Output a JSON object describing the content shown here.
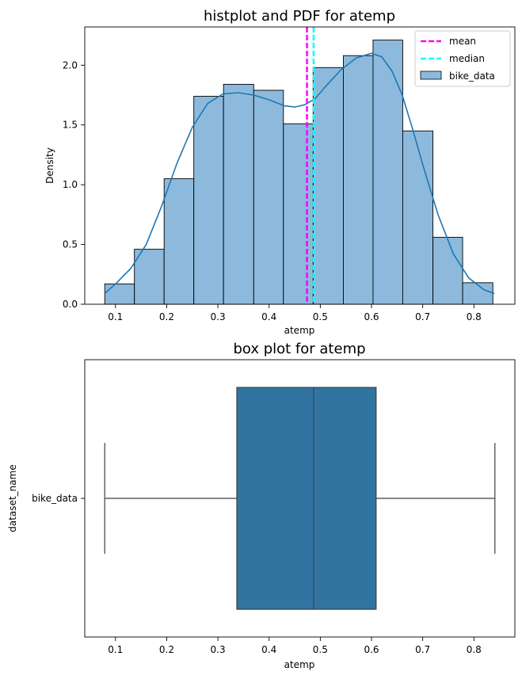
{
  "chart_data": [
    {
      "type": "histogram",
      "title": "histplot and PDF for atemp",
      "xlabel": "atemp",
      "ylabel": "Density",
      "xlim": [
        0.04,
        0.88
      ],
      "ylim": [
        0,
        2.32
      ],
      "xticks": [
        0.1,
        0.2,
        0.3,
        0.4,
        0.5,
        0.6,
        0.7,
        0.8
      ],
      "xtick_labels": [
        "0.1",
        "0.2",
        "0.3",
        "0.4",
        "0.5",
        "0.6",
        "0.7",
        "0.8"
      ],
      "yticks": [
        0,
        0.5,
        1,
        1.5,
        2
      ],
      "ytick_labels": [
        "0.0",
        "0.5",
        "1.0",
        "1.5",
        "2.0"
      ],
      "grid": false,
      "legend_position": "top-right",
      "legend": [
        "mean",
        "median",
        "bike_data"
      ],
      "bins": [
        {
          "x0": 0.079,
          "x1": 0.137,
          "density": 0.17
        },
        {
          "x0": 0.137,
          "x1": 0.195,
          "density": 0.46
        },
        {
          "x0": 0.195,
          "x1": 0.253,
          "density": 1.05
        },
        {
          "x0": 0.253,
          "x1": 0.311,
          "density": 1.74
        },
        {
          "x0": 0.311,
          "x1": 0.37,
          "density": 1.84
        },
        {
          "x0": 0.37,
          "x1": 0.428,
          "density": 1.79
        },
        {
          "x0": 0.428,
          "x1": 0.486,
          "density": 1.51
        },
        {
          "x0": 0.486,
          "x1": 0.545,
          "density": 1.98
        },
        {
          "x0": 0.545,
          "x1": 0.603,
          "density": 2.08
        },
        {
          "x0": 0.603,
          "x1": 0.661,
          "density": 2.21
        },
        {
          "x0": 0.661,
          "x1": 0.72,
          "density": 1.45
        },
        {
          "x0": 0.72,
          "x1": 0.778,
          "density": 0.56
        },
        {
          "x0": 0.778,
          "x1": 0.837,
          "density": 0.18
        }
      ],
      "kde": {
        "x": [
          0.079,
          0.1,
          0.13,
          0.16,
          0.19,
          0.22,
          0.25,
          0.28,
          0.31,
          0.34,
          0.37,
          0.4,
          0.43,
          0.45,
          0.47,
          0.49,
          0.51,
          0.54,
          0.57,
          0.6,
          0.62,
          0.64,
          0.66,
          0.68,
          0.7,
          0.73,
          0.76,
          0.79,
          0.82,
          0.84
        ],
        "y": [
          0.09,
          0.17,
          0.3,
          0.5,
          0.82,
          1.18,
          1.48,
          1.68,
          1.76,
          1.77,
          1.75,
          1.71,
          1.66,
          1.65,
          1.67,
          1.72,
          1.82,
          1.96,
          2.06,
          2.1,
          2.07,
          1.95,
          1.75,
          1.47,
          1.17,
          0.75,
          0.42,
          0.22,
          0.12,
          0.09
        ]
      },
      "mean": 0.474,
      "median": 0.487,
      "colors": {
        "bars": "#8dbadc",
        "kde": "#1f77b4",
        "mean": "#ff00ff",
        "median": "#00ffff"
      }
    },
    {
      "type": "box",
      "title": "box plot for atemp",
      "xlabel": "atemp",
      "ylabel": "dataset_name",
      "category": "bike_data",
      "xlim": [
        0.04,
        0.88
      ],
      "xticks": [
        0.1,
        0.2,
        0.3,
        0.4,
        0.5,
        0.6,
        0.7,
        0.8
      ],
      "xtick_labels": [
        "0.1",
        "0.2",
        "0.3",
        "0.4",
        "0.5",
        "0.6",
        "0.7",
        "0.8"
      ],
      "min": 0.079,
      "q1": 0.337,
      "median": 0.487,
      "q3": 0.609,
      "max": 0.841,
      "colors": {
        "box": "#3274a1",
        "lines": "#3f3f3f"
      }
    }
  ]
}
